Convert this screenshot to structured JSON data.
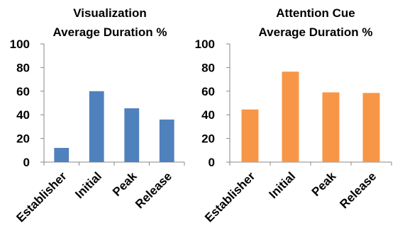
{
  "chart_data": [
    {
      "type": "bar",
      "title_line1": "Visualization",
      "title_line2": "Average Duration %",
      "categories": [
        "Establisher",
        "Initial",
        "Peak",
        "Release"
      ],
      "values": [
        12,
        60,
        45.5,
        36
      ],
      "ylim": [
        0,
        100
      ],
      "yticks": [
        "0",
        "20",
        "40",
        "60",
        "80",
        "100"
      ],
      "color": "#4f81bd",
      "grid": false,
      "legend": "none"
    },
    {
      "type": "bar",
      "title_line1": "Attention Cue",
      "title_line2": "Average Duration %",
      "categories": [
        "Establisher",
        "Initial",
        "Peak",
        "Release"
      ],
      "values": [
        44.5,
        76.5,
        59,
        58.5
      ],
      "ylim": [
        0,
        100
      ],
      "yticks": [
        "0",
        "20",
        "40",
        "60",
        "80",
        "100"
      ],
      "color": "#f79646",
      "grid": false,
      "legend": "none"
    }
  ]
}
